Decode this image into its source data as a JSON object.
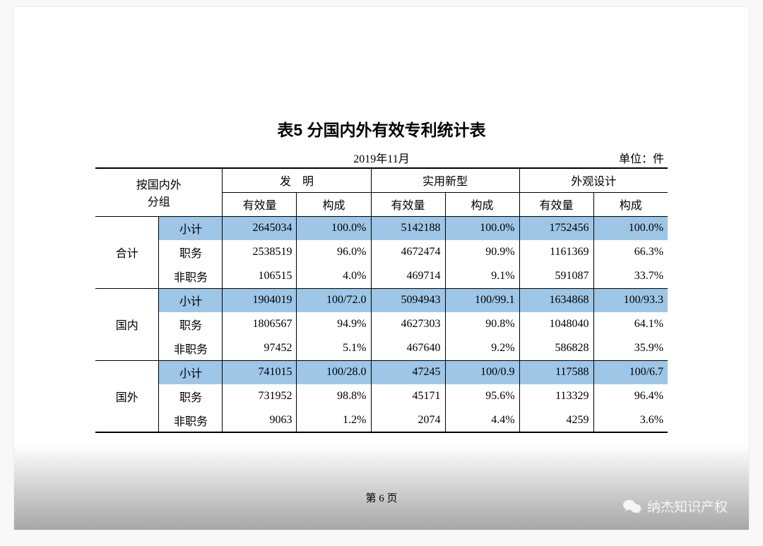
{
  "title": "表5  分国内外有效专利统计表",
  "date": "2019年11月",
  "unit": "单位：件",
  "header": {
    "group": "按国内外\n分组",
    "col1": "发　明",
    "col2": "实用新型",
    "col3": "外观设计",
    "sub1": "有效量",
    "sub2": "构成"
  },
  "groups": [
    {
      "name": "合计",
      "rows": [
        {
          "label": "小计",
          "v": [
            "2645034",
            "100.0%",
            "5142188",
            "100.0%",
            "1752456",
            "100.0%"
          ],
          "hl": true
        },
        {
          "label": "职务",
          "v": [
            "2538519",
            "96.0%",
            "4672474",
            "90.9%",
            "1161369",
            "66.3%"
          ],
          "hl": false
        },
        {
          "label": "非职务",
          "v": [
            "106515",
            "4.0%",
            "469714",
            "9.1%",
            "591087",
            "33.7%"
          ],
          "hl": false
        }
      ]
    },
    {
      "name": "国内",
      "rows": [
        {
          "label": "小计",
          "v": [
            "1904019",
            "100/72.0",
            "5094943",
            "100/99.1",
            "1634868",
            "100/93.3"
          ],
          "hl": true
        },
        {
          "label": "职务",
          "v": [
            "1806567",
            "94.9%",
            "4627303",
            "90.8%",
            "1048040",
            "64.1%"
          ],
          "hl": false
        },
        {
          "label": "非职务",
          "v": [
            "97452",
            "5.1%",
            "467640",
            "9.2%",
            "586828",
            "35.9%"
          ],
          "hl": false
        }
      ]
    },
    {
      "name": "国外",
      "rows": [
        {
          "label": "小计",
          "v": [
            "741015",
            "100/28.0",
            "47245",
            "100/0.9",
            "117588",
            "100/6.7"
          ],
          "hl": true
        },
        {
          "label": "职务",
          "v": [
            "731952",
            "98.8%",
            "45171",
            "95.6%",
            "113329",
            "96.4%"
          ],
          "hl": false
        },
        {
          "label": "非职务",
          "v": [
            "9063",
            "1.2%",
            "2074",
            "4.4%",
            "4259",
            "3.6%"
          ],
          "hl": false
        }
      ]
    }
  ],
  "footer": "第 6 页",
  "watermark": "纳杰知识产权",
  "colors": {
    "highlight": "#9dc6e7",
    "text": "#000000",
    "background": "#ffffff"
  }
}
